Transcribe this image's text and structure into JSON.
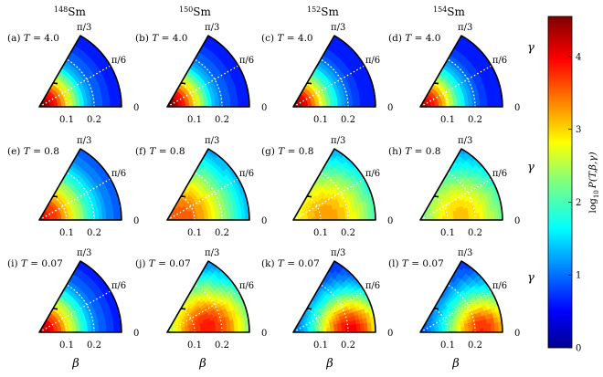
{
  "chart_data": {
    "type": "heatmap",
    "description_free": true,
    "columns": [
      {
        "nucleus_mass": "148",
        "nucleus_symbol": "Sm"
      },
      {
        "nucleus_mass": "150",
        "nucleus_symbol": "Sm"
      },
      {
        "nucleus_mass": "152",
        "nucleus_symbol": "Sm"
      },
      {
        "nucleus_mass": "154",
        "nucleus_symbol": "Sm"
      }
    ],
    "rows": [
      {
        "T_label": "T = 4.0"
      },
      {
        "T_label": "T = 0.8"
      },
      {
        "T_label": "T = 0.07"
      }
    ],
    "panels": [
      {
        "label": "(a)",
        "row": 0,
        "col": 0,
        "peak_beta": 0.0,
        "peak_gamma_deg": 30,
        "peak_value": 4.5,
        "width": 0.1,
        "floor": 0.6
      },
      {
        "label": "(b)",
        "row": 0,
        "col": 1,
        "peak_beta": 0.0,
        "peak_gamma_deg": 30,
        "peak_value": 4.5,
        "width": 0.1,
        "floor": 0.6
      },
      {
        "label": "(c)",
        "row": 0,
        "col": 2,
        "peak_beta": 0.0,
        "peak_gamma_deg": 30,
        "peak_value": 4.4,
        "width": 0.1,
        "floor": 0.6
      },
      {
        "label": "(d)",
        "row": 0,
        "col": 3,
        "peak_beta": 0.0,
        "peak_gamma_deg": 30,
        "peak_value": 4.3,
        "width": 0.1,
        "floor": 0.6
      },
      {
        "label": "(e)",
        "row": 1,
        "col": 0,
        "peak_beta": 0.0,
        "peak_gamma_deg": 20,
        "peak_value": 4.0,
        "width": 0.13,
        "floor": 0.7
      },
      {
        "label": "(f)",
        "row": 1,
        "col": 1,
        "peak_beta": 0.05,
        "peak_gamma_deg": 10,
        "peak_value": 3.6,
        "width": 0.15,
        "floor": 0.7
      },
      {
        "label": "(g)",
        "row": 1,
        "col": 2,
        "peak_beta": 0.12,
        "peak_gamma_deg": 5,
        "peak_value": 3.3,
        "width": 0.15,
        "floor": 0.7
      },
      {
        "label": "(h)",
        "row": 1,
        "col": 3,
        "peak_beta": 0.15,
        "peak_gamma_deg": 5,
        "peak_value": 3.1,
        "width": 0.14,
        "floor": 0.8
      },
      {
        "label": "(i)",
        "row": 2,
        "col": 0,
        "peak_beta": 0.0,
        "peak_gamma_deg": 25,
        "peak_value": 4.3,
        "width": 0.11,
        "floor": 0.6
      },
      {
        "label": "(j)",
        "row": 2,
        "col": 1,
        "peak_beta": 0.15,
        "peak_gamma_deg": 5,
        "peak_value": 3.9,
        "width": 0.13,
        "floor": 0.6
      },
      {
        "label": "(k)",
        "row": 2,
        "col": 2,
        "peak_beta": 0.21,
        "peak_gamma_deg": 3,
        "peak_value": 4.0,
        "width": 0.1,
        "floor": 0.6
      },
      {
        "label": "(l)",
        "row": 2,
        "col": 3,
        "peak_beta": 0.23,
        "peak_gamma_deg": 3,
        "peak_value": 3.8,
        "width": 0.1,
        "floor": 0.7
      }
    ],
    "beta_max": 0.3,
    "beta_ticks": [
      "0.1",
      "0.2"
    ],
    "gamma_tick_labels": [
      "0",
      "π/6",
      "π/3"
    ],
    "xlabel": "β",
    "gamma_axis_label": "γ",
    "colorbar": {
      "label": "log10 P(T,β,γ)",
      "label_parts": {
        "log": "log",
        "sub": "10",
        "func": "P(T,β,γ)"
      },
      "range": [
        0,
        4.55
      ],
      "ticks": [
        "0",
        "1",
        "2",
        "3",
        "4"
      ],
      "levels": 30,
      "colormap": "jet"
    },
    "grid": "dotted-white"
  }
}
